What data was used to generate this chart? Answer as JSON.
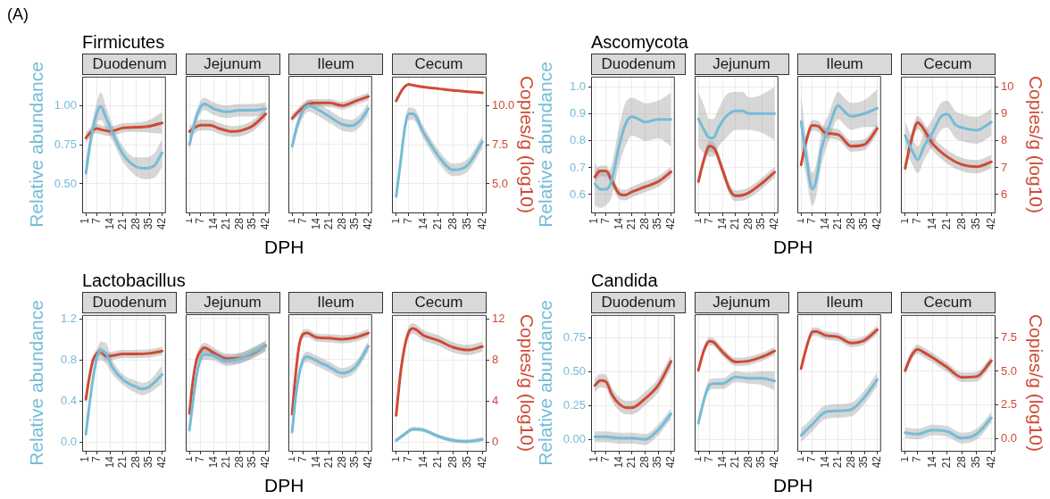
{
  "chart_data": [
    {
      "type": "line",
      "title": "Firmicutes",
      "subtitle": "Duodenum",
      "annotations": [
        "(A)"
      ],
      "ylabel": "Relative abundance",
      "xlim": [
        -1,
        44
      ],
      "xticks": [
        1,
        7,
        14,
        21,
        28,
        35,
        42
      ],
      "ylim": [
        0.31,
        1.19
      ],
      "yticks": [
        {
          "value": 0.5,
          "label": "0.50"
        },
        {
          "value": 0.75,
          "label": "0.75"
        },
        {
          "value": 1,
          "label": "1.00"
        }
      ],
      "y2lim": [
        3.1,
        11.9
      ],
      "grid": true,
      "series": [
        {
          "color": "#74bcd8",
          "x": [
            1,
            4,
            7,
            9,
            12,
            16,
            21,
            28,
            33,
            38,
            42
          ],
          "values": [
            0.57,
            0.81,
            0.96,
            1.0,
            0.92,
            0.81,
            0.69,
            0.61,
            0.6,
            0.62,
            0.7
          ],
          "lower": [
            0.49,
            0.75,
            0.89,
            0.91,
            0.85,
            0.76,
            0.64,
            0.55,
            0.53,
            0.54,
            0.61
          ],
          "upper": [
            0.65,
            0.87,
            1.03,
            1.09,
            0.99,
            0.86,
            0.74,
            0.67,
            0.67,
            0.7,
            0.79
          ]
        },
        {
          "color": "#cf4a35",
          "axis": "y2",
          "x": [
            1,
            4,
            7,
            9,
            14,
            21,
            28,
            35,
            42
          ],
          "values": [
            7.95,
            8.38,
            8.56,
            8.49,
            8.38,
            8.6,
            8.64,
            8.7,
            8.92
          ],
          "lower": [
            7.6,
            8.08,
            8.26,
            8.19,
            8.08,
            8.3,
            8.34,
            8.3,
            8.22
          ],
          "upper": [
            8.3,
            8.68,
            8.86,
            8.79,
            8.68,
            8.9,
            8.94,
            9.1,
            9.62
          ]
        }
      ]
    },
    {
      "type": "line",
      "subtitle": "Jejunum",
      "xlabel": "DPH",
      "xlim": [
        -1,
        44
      ],
      "xticks": [
        1,
        7,
        14,
        21,
        28,
        35,
        42
      ],
      "ylim": [
        0.31,
        1.19
      ],
      "yticks": [
        0.5,
        0.75,
        1
      ],
      "y2lim": [
        3.1,
        11.9
      ],
      "y2ticks": [
        5,
        7.5,
        10
      ],
      "grid": true,
      "tick_labels": "x",
      "series": [
        {
          "color": "#74bcd8",
          "x": [
            1,
            4,
            7,
            9,
            14,
            21,
            28,
            35,
            42
          ],
          "values": [
            0.75,
            0.9,
            0.99,
            1.01,
            0.98,
            0.96,
            0.97,
            0.97,
            0.98
          ],
          "lower": [
            0.71,
            0.86,
            0.95,
            0.97,
            0.94,
            0.92,
            0.93,
            0.93,
            0.94
          ],
          "upper": [
            0.79,
            0.94,
            1.03,
            1.05,
            1.02,
            1.0,
            1.01,
            1.01,
            1.02
          ]
        },
        {
          "color": "#cf4a35",
          "axis": "y2",
          "x": [
            1,
            4,
            7,
            12,
            17,
            24,
            28,
            35,
            42
          ],
          "values": [
            8.34,
            8.6,
            8.75,
            8.75,
            8.53,
            8.34,
            8.38,
            8.7,
            9.46
          ],
          "lower": [
            7.99,
            8.25,
            8.4,
            8.4,
            8.18,
            7.99,
            8.03,
            8.35,
            9.11
          ],
          "upper": [
            8.69,
            8.95,
            9.1,
            9.1,
            8.88,
            8.69,
            8.73,
            9.05,
            9.81
          ]
        }
      ]
    },
    {
      "type": "line",
      "subtitle": "Ileum",
      "xlim": [
        -1,
        44
      ],
      "xticks": [
        1,
        7,
        14,
        21,
        28,
        35,
        42
      ],
      "ylim": [
        0.31,
        1.19
      ],
      "yticks": [
        0.5,
        0.75,
        1
      ],
      "y2lim": [
        3.1,
        11.9
      ],
      "y2ticks": [
        5,
        7.5,
        10
      ],
      "grid": true,
      "tick_labels": "x",
      "series": [
        {
          "color": "#74bcd8",
          "x": [
            1,
            4,
            7,
            10,
            14,
            21,
            28,
            33,
            38,
            42
          ],
          "values": [
            0.74,
            0.88,
            0.97,
            1.0,
            0.98,
            0.93,
            0.88,
            0.87,
            0.91,
            0.98
          ],
          "lower": [
            0.7,
            0.84,
            0.93,
            0.96,
            0.94,
            0.89,
            0.84,
            0.83,
            0.87,
            0.94
          ],
          "upper": [
            0.78,
            0.92,
            1.01,
            1.04,
            1.02,
            0.97,
            0.92,
            0.91,
            0.95,
            1.02
          ]
        },
        {
          "color": "#cf4a35",
          "axis": "y2",
          "x": [
            1,
            4,
            7,
            10,
            14,
            21,
            28,
            35,
            42
          ],
          "values": [
            9.18,
            9.57,
            9.89,
            10.1,
            10.17,
            10.17,
            10.0,
            10.28,
            10.58
          ],
          "lower": [
            8.93,
            9.32,
            9.64,
            9.85,
            9.92,
            9.92,
            9.75,
            10.03,
            10.33
          ],
          "upper": [
            9.43,
            9.82,
            10.14,
            10.35,
            10.42,
            10.42,
            10.25,
            10.53,
            10.83
          ]
        }
      ]
    },
    {
      "type": "line",
      "subtitle": "Cecum",
      "y2label": "Copies/g (log10)",
      "xlim": [
        -1,
        44
      ],
      "xticks": [
        1,
        7,
        14,
        21,
        28,
        35,
        42
      ],
      "ylim": [
        0.31,
        1.19
      ],
      "y2lim": [
        3.1,
        11.9
      ],
      "y2ticks": [
        {
          "value": 5,
          "label": "5.0"
        },
        {
          "value": 7.5,
          "label": "7.5"
        },
        {
          "value": 10,
          "label": "10.0"
        }
      ],
      "grid": true,
      "series": [
        {
          "color": "#74bcd8",
          "x": [
            1,
            3,
            5,
            7,
            9,
            14,
            21,
            28,
            35,
            42
          ],
          "values": [
            0.42,
            0.63,
            0.85,
            0.95,
            0.95,
            0.83,
            0.68,
            0.59,
            0.62,
            0.77
          ],
          "lower": [
            0.38,
            0.59,
            0.81,
            0.91,
            0.91,
            0.79,
            0.64,
            0.55,
            0.58,
            0.73
          ],
          "upper": [
            0.46,
            0.67,
            0.89,
            0.99,
            0.99,
            0.87,
            0.72,
            0.63,
            0.66,
            0.81
          ]
        },
        {
          "color": "#cf4a35",
          "axis": "y2",
          "x": [
            1,
            4,
            7,
            9,
            14,
            21,
            28,
            35,
            42
          ],
          "values": [
            10.34,
            11.08,
            11.4,
            11.34,
            11.23,
            11.12,
            11.01,
            10.93,
            10.86
          ]
        }
      ]
    },
    {
      "type": "line",
      "title": "Ascomycota",
      "subtitle": "Duodenum",
      "ylabel": "Relative abundance",
      "xlim": [
        -1,
        44
      ],
      "xticks": [
        1,
        7,
        14,
        21,
        28,
        35,
        42
      ],
      "ylim": [
        0.53,
        1.04
      ],
      "yticks": [
        0.6,
        0.7,
        0.8,
        0.9,
        {
          "value": 1,
          "label": "1.0"
        }
      ],
      "y2lim": [
        5.3,
        10.4
      ],
      "grid": true,
      "series": [
        {
          "color": "#74bcd8",
          "x": [
            1,
            4,
            7,
            10,
            14,
            18,
            21,
            25,
            28,
            35,
            42
          ],
          "values": [
            0.64,
            0.62,
            0.62,
            0.65,
            0.78,
            0.87,
            0.89,
            0.88,
            0.87,
            0.88,
            0.88
          ],
          "lower": [
            0.56,
            0.55,
            0.56,
            0.59,
            0.71,
            0.79,
            0.82,
            0.81,
            0.8,
            0.81,
            0.78
          ],
          "upper": [
            0.72,
            0.69,
            0.68,
            0.71,
            0.85,
            0.95,
            0.96,
            0.95,
            0.94,
            0.95,
            0.98
          ]
        },
        {
          "color": "#cf4a35",
          "axis": "y2",
          "x": [
            1,
            4,
            7,
            10,
            14,
            17,
            21,
            28,
            35,
            42
          ],
          "values": [
            6.66,
            6.88,
            6.88,
            6.54,
            6.04,
            5.98,
            6.1,
            6.29,
            6.48,
            6.85
          ],
          "lower": [
            6.46,
            6.68,
            6.68,
            6.34,
            5.84,
            5.78,
            5.9,
            6.09,
            6.28,
            6.65
          ],
          "upper": [
            6.86,
            7.08,
            7.08,
            6.74,
            6.24,
            6.18,
            6.3,
            6.49,
            6.68,
            7.05
          ]
        }
      ]
    },
    {
      "type": "line",
      "subtitle": "Jejunum",
      "xlabel": "DPH",
      "xlim": [
        -1,
        44
      ],
      "xticks": [
        1,
        7,
        14,
        21,
        28,
        35,
        42
      ],
      "ylim": [
        0.53,
        1.04
      ],
      "yticks": [
        0.6,
        0.7,
        0.8,
        0.9,
        1
      ],
      "y2lim": [
        5.3,
        10.4
      ],
      "y2ticks": [
        6,
        7,
        8,
        9,
        10
      ],
      "grid": true,
      "tick_labels": "x",
      "series": [
        {
          "color": "#74bcd8",
          "x": [
            1,
            4,
            7,
            9,
            12,
            16,
            21,
            25,
            28,
            35,
            42
          ],
          "values": [
            0.88,
            0.84,
            0.81,
            0.81,
            0.85,
            0.89,
            0.91,
            0.91,
            0.9,
            0.9,
            0.9
          ],
          "lower": [
            0.78,
            0.75,
            0.74,
            0.74,
            0.78,
            0.81,
            0.84,
            0.84,
            0.84,
            0.83,
            0.8
          ],
          "upper": [
            0.98,
            0.93,
            0.88,
            0.88,
            0.92,
            0.97,
            0.98,
            0.98,
            0.96,
            0.97,
            1.0
          ]
        },
        {
          "color": "#cf4a35",
          "axis": "y2",
          "x": [
            1,
            4,
            7,
            10,
            14,
            18,
            21,
            25,
            28,
            35,
            42
          ],
          "values": [
            6.48,
            7.29,
            7.79,
            7.66,
            6.91,
            6.16,
            5.95,
            5.98,
            6.06,
            6.41,
            6.83
          ],
          "lower": [
            6.28,
            7.09,
            7.59,
            7.46,
            6.71,
            5.96,
            5.75,
            5.78,
            5.86,
            6.21,
            6.63
          ],
          "upper": [
            6.68,
            7.49,
            7.99,
            7.86,
            7.11,
            6.36,
            6.15,
            6.18,
            6.26,
            6.61,
            7.03
          ]
        }
      ]
    },
    {
      "type": "line",
      "subtitle": "Ileum",
      "xlim": [
        -1,
        44
      ],
      "xticks": [
        1,
        7,
        14,
        21,
        28,
        35,
        42
      ],
      "ylim": [
        0.53,
        1.04
      ],
      "yticks": [
        0.6,
        0.7,
        0.8,
        0.9,
        1
      ],
      "y2lim": [
        5.3,
        10.4
      ],
      "y2ticks": [
        6,
        7,
        8,
        9,
        10
      ],
      "grid": true,
      "tick_labels": "x",
      "series": [
        {
          "color": "#74bcd8",
          "x": [
            1,
            4,
            7,
            9,
            12,
            16,
            21,
            24,
            28,
            35,
            42
          ],
          "values": [
            0.87,
            0.73,
            0.62,
            0.65,
            0.77,
            0.85,
            0.93,
            0.91,
            0.89,
            0.9,
            0.92
          ],
          "lower": [
            0.77,
            0.66,
            0.56,
            0.59,
            0.71,
            0.8,
            0.88,
            0.86,
            0.84,
            0.85,
            0.85
          ],
          "upper": [
            0.97,
            0.8,
            0.68,
            0.71,
            0.83,
            0.9,
            0.98,
            0.96,
            0.94,
            0.95,
            0.99
          ]
        },
        {
          "color": "#cf4a35",
          "axis": "y2",
          "x": [
            1,
            4,
            7,
            10,
            14,
            21,
            28,
            35,
            42
          ],
          "values": [
            7.1,
            8.04,
            8.56,
            8.54,
            8.29,
            8.22,
            7.79,
            7.85,
            8.45
          ],
          "lower": [
            6.9,
            7.84,
            8.36,
            8.34,
            8.09,
            8.02,
            7.59,
            7.65,
            8.25
          ],
          "upper": [
            7.3,
            8.24,
            8.76,
            8.74,
            8.49,
            8.42,
            7.99,
            8.05,
            8.65
          ]
        }
      ]
    },
    {
      "type": "line",
      "subtitle": "Cecum",
      "y2label": "Copies/g (log10)",
      "xlim": [
        -1,
        44
      ],
      "xticks": [
        1,
        7,
        14,
        21,
        28,
        35,
        42
      ],
      "ylim": [
        0.53,
        1.04
      ],
      "y2lim": [
        5.3,
        10.4
      ],
      "y2ticks": [
        6,
        7,
        8,
        9,
        10
      ],
      "grid": true,
      "series": [
        {
          "color": "#74bcd8",
          "x": [
            1,
            4,
            7,
            10,
            14,
            18,
            21,
            25,
            28,
            35,
            42
          ],
          "values": [
            0.82,
            0.77,
            0.73,
            0.78,
            0.83,
            0.89,
            0.9,
            0.86,
            0.85,
            0.84,
            0.87
          ],
          "lower": [
            0.77,
            0.72,
            0.68,
            0.73,
            0.78,
            0.84,
            0.85,
            0.81,
            0.8,
            0.79,
            0.82
          ],
          "upper": [
            0.87,
            0.82,
            0.78,
            0.83,
            0.88,
            0.94,
            0.95,
            0.91,
            0.9,
            0.89,
            0.92
          ]
        },
        {
          "color": "#cf4a35",
          "axis": "y2",
          "x": [
            1,
            4,
            7,
            9,
            14,
            21,
            28,
            35,
            42
          ],
          "values": [
            6.98,
            8.04,
            8.69,
            8.54,
            7.91,
            7.41,
            7.12,
            7.04,
            7.22
          ],
          "lower": [
            6.73,
            7.79,
            8.44,
            8.29,
            7.66,
            7.16,
            6.87,
            6.79,
            6.97
          ],
          "upper": [
            7.23,
            8.29,
            8.94,
            8.79,
            8.16,
            7.66,
            7.37,
            7.29,
            7.47
          ]
        }
      ]
    },
    {
      "type": "line",
      "title": "Lactobacillus",
      "subtitle": "Duodenum",
      "ylabel": "Relative abundance",
      "xlim": [
        -1,
        44
      ],
      "xticks": [
        1,
        7,
        14,
        21,
        28,
        35,
        42
      ],
      "ylim": [
        -0.09,
        1.24
      ],
      "yticks": [
        {
          "value": 0,
          "label": "0.0"
        },
        0.4,
        0.8,
        1.2
      ],
      "y2lim": [
        -0.9,
        12.4
      ],
      "grid": true,
      "series": [
        {
          "color": "#74bcd8",
          "x": [
            1,
            3,
            5,
            7,
            9,
            12,
            15,
            21,
            28,
            31,
            35,
            42
          ],
          "values": [
            0.08,
            0.38,
            0.64,
            0.83,
            0.89,
            0.86,
            0.74,
            0.61,
            0.54,
            0.52,
            0.54,
            0.66
          ],
          "lower": [
            0.05,
            0.34,
            0.59,
            0.77,
            0.8,
            0.76,
            0.67,
            0.56,
            0.48,
            0.46,
            0.48,
            0.57
          ],
          "upper": [
            0.11,
            0.42,
            0.69,
            0.89,
            0.98,
            0.96,
            0.81,
            0.66,
            0.6,
            0.58,
            0.6,
            0.75
          ]
        },
        {
          "color": "#cf4a35",
          "axis": "y2",
          "x": [
            1,
            3,
            5,
            7,
            9,
            12,
            15,
            21,
            28,
            35,
            42
          ],
          "values": [
            4.2,
            6.45,
            8.1,
            8.66,
            8.83,
            8.36,
            8.43,
            8.6,
            8.6,
            8.66,
            8.89
          ],
          "lower": [
            3.8,
            6.05,
            7.7,
            8.26,
            8.43,
            7.96,
            8.03,
            8.2,
            8.2,
            8.26,
            8.49
          ],
          "upper": [
            4.6,
            6.85,
            8.5,
            9.06,
            9.23,
            8.76,
            8.83,
            9.0,
            9.0,
            9.06,
            9.29
          ]
        }
      ]
    },
    {
      "type": "line",
      "subtitle": "Jejunum",
      "xlabel": "DPH",
      "xlim": [
        -1,
        44
      ],
      "xticks": [
        1,
        7,
        14,
        21,
        28,
        35,
        42
      ],
      "ylim": [
        -0.09,
        1.24
      ],
      "yticks": [
        0,
        0.4,
        0.8,
        1.2
      ],
      "y2lim": [
        -0.9,
        12.4
      ],
      "y2ticks": [
        0,
        4,
        8,
        12
      ],
      "grid": true,
      "tick_labels": "x",
      "series": [
        {
          "color": "#74bcd8",
          "x": [
            1,
            3,
            5,
            7,
            9,
            14,
            21,
            28,
            35,
            42
          ],
          "values": [
            0.12,
            0.41,
            0.66,
            0.81,
            0.85,
            0.84,
            0.79,
            0.81,
            0.87,
            0.93
          ],
          "lower": [
            0.07,
            0.36,
            0.61,
            0.76,
            0.8,
            0.79,
            0.74,
            0.76,
            0.82,
            0.88
          ],
          "upper": [
            0.17,
            0.46,
            0.71,
            0.86,
            0.9,
            0.89,
            0.84,
            0.86,
            0.92,
            0.98
          ]
        },
        {
          "color": "#cf4a35",
          "axis": "y2",
          "x": [
            1,
            3,
            5,
            7,
            9,
            14,
            21,
            28,
            35,
            42
          ],
          "values": [
            2.81,
            6.12,
            8.1,
            8.83,
            9.16,
            8.66,
            8.1,
            8.17,
            8.6,
            9.36
          ],
          "lower": [
            2.31,
            5.62,
            7.6,
            8.33,
            8.66,
            8.16,
            7.6,
            7.67,
            8.1,
            8.86
          ],
          "upper": [
            3.31,
            6.62,
            8.6,
            9.33,
            9.66,
            9.16,
            8.6,
            8.67,
            9.1,
            9.86
          ]
        }
      ]
    },
    {
      "type": "line",
      "subtitle": "Ileum",
      "xlim": [
        -1,
        44
      ],
      "xticks": [
        1,
        7,
        14,
        21,
        28,
        35,
        42
      ],
      "ylim": [
        -0.09,
        1.24
      ],
      "yticks": [
        0,
        0.4,
        0.8,
        1.2
      ],
      "y2lim": [
        -0.9,
        12.4
      ],
      "y2ticks": [
        0,
        4,
        8,
        12
      ],
      "grid": true,
      "tick_labels": "x",
      "series": [
        {
          "color": "#74bcd8",
          "x": [
            1,
            3,
            5,
            7,
            9,
            14,
            21,
            28,
            35,
            42
          ],
          "values": [
            0.1,
            0.45,
            0.68,
            0.8,
            0.83,
            0.79,
            0.73,
            0.67,
            0.73,
            0.93
          ],
          "lower": [
            0.05,
            0.4,
            0.63,
            0.75,
            0.78,
            0.74,
            0.68,
            0.62,
            0.68,
            0.88
          ],
          "upper": [
            0.15,
            0.5,
            0.73,
            0.85,
            0.88,
            0.84,
            0.78,
            0.72,
            0.78,
            0.98
          ]
        },
        {
          "color": "#cf4a35",
          "axis": "y2",
          "x": [
            1,
            3,
            5,
            7,
            9,
            14,
            21,
            28,
            35,
            42
          ],
          "values": [
            2.74,
            6.78,
            9.59,
            10.48,
            10.58,
            10.15,
            10.08,
            9.98,
            10.15,
            10.58
          ],
          "lower": [
            2.34,
            6.38,
            9.19,
            10.08,
            10.18,
            9.75,
            9.68,
            9.58,
            9.75,
            10.18
          ],
          "upper": [
            3.14,
            7.18,
            9.99,
            10.88,
            10.98,
            10.55,
            10.48,
            10.38,
            10.55,
            10.98
          ]
        }
      ]
    },
    {
      "type": "line",
      "subtitle": "Cecum",
      "y2label": "Copies/g (log10)",
      "xlim": [
        -1,
        44
      ],
      "xticks": [
        1,
        7,
        14,
        21,
        28,
        35,
        42
      ],
      "ylim": [
        -0.09,
        1.24
      ],
      "y2lim": [
        -0.9,
        12.4
      ],
      "y2ticks": [
        0,
        4,
        8,
        12
      ],
      "grid": true,
      "series": [
        {
          "color": "#74bcd8",
          "x": [
            1,
            5,
            9,
            14,
            21,
            28,
            35,
            42
          ],
          "values": [
            0.02,
            0.08,
            0.13,
            0.12,
            0.06,
            0.02,
            0.01,
            0.03
          ],
          "lower": [
            0.0,
            0.06,
            0.11,
            0.1,
            0.04,
            0.0,
            -0.01,
            0.01
          ],
          "upper": [
            0.04,
            0.1,
            0.15,
            0.14,
            0.08,
            0.04,
            0.03,
            0.05
          ]
        },
        {
          "color": "#cf4a35",
          "axis": "y2",
          "x": [
            1,
            3,
            5,
            7,
            9,
            14,
            21,
            28,
            35,
            42
          ],
          "values": [
            2.64,
            6.61,
            9.26,
            10.74,
            11.07,
            10.41,
            9.92,
            9.26,
            8.99,
            9.32
          ],
          "lower": [
            2.14,
            6.11,
            8.76,
            10.24,
            10.57,
            9.91,
            9.42,
            8.76,
            8.49,
            8.82
          ],
          "upper": [
            3.14,
            7.11,
            9.76,
            11.24,
            11.57,
            10.91,
            10.42,
            9.76,
            9.49,
            9.82
          ]
        }
      ]
    },
    {
      "type": "line",
      "title": "Candida",
      "subtitle": "Duodenum",
      "ylabel": "Relative abundance",
      "xlim": [
        -1,
        44
      ],
      "xticks": [
        1,
        7,
        14,
        21,
        28,
        35,
        42
      ],
      "ylim": [
        -0.09,
        0.92
      ],
      "yticks": [
        {
          "value": 0,
          "label": "0.00"
        },
        {
          "value": 0.25,
          "label": "0.25"
        },
        {
          "value": 0.5,
          "label": "0.50"
        },
        {
          "value": 0.75,
          "label": "0.75"
        }
      ],
      "y2lim": [
        -0.93,
        9.16
      ],
      "grid": true,
      "series": [
        {
          "color": "#74bcd8",
          "x": [
            1,
            7,
            14,
            21,
            28,
            35,
            42
          ],
          "values": [
            0.02,
            0.02,
            0.01,
            0.01,
            0.0,
            0.07,
            0.19
          ],
          "lower": [
            -0.02,
            -0.02,
            -0.03,
            -0.03,
            -0.04,
            0.03,
            0.15
          ],
          "upper": [
            0.06,
            0.06,
            0.05,
            0.05,
            0.04,
            0.11,
            0.23
          ]
        },
        {
          "color": "#cf4a35",
          "axis": "y2",
          "x": [
            1,
            4,
            7,
            10,
            14,
            18,
            21,
            28,
            35,
            42
          ],
          "values": [
            3.95,
            4.32,
            4.24,
            3.34,
            2.61,
            2.32,
            2.32,
            2.98,
            3.95,
            5.73
          ],
          "lower": [
            3.45,
            3.82,
            3.74,
            2.84,
            2.11,
            1.82,
            1.82,
            2.48,
            3.45,
            5.23
          ],
          "upper": [
            4.45,
            4.82,
            4.74,
            3.84,
            3.11,
            2.82,
            2.82,
            3.48,
            4.45,
            6.23
          ]
        }
      ]
    },
    {
      "type": "line",
      "subtitle": "Jejunum",
      "xlabel": "DPH",
      "xlim": [
        -1,
        44
      ],
      "xticks": [
        1,
        7,
        14,
        21,
        28,
        35,
        42
      ],
      "ylim": [
        -0.09,
        0.92
      ],
      "yticks": [
        0,
        0.25,
        0.5,
        0.75
      ],
      "y2lim": [
        -0.93,
        9.16
      ],
      "y2ticks": [
        0,
        2.5,
        5,
        7.5
      ],
      "grid": true,
      "tick_labels": "x",
      "series": [
        {
          "color": "#74bcd8",
          "x": [
            1,
            4,
            7,
            10,
            14,
            21,
            28,
            35,
            42
          ],
          "values": [
            0.12,
            0.29,
            0.4,
            0.41,
            0.41,
            0.46,
            0.45,
            0.45,
            0.43
          ],
          "lower": [
            0.08,
            0.25,
            0.36,
            0.37,
            0.37,
            0.42,
            0.41,
            0.4,
            0.36
          ],
          "upper": [
            0.16,
            0.33,
            0.44,
            0.45,
            0.45,
            0.5,
            0.49,
            0.5,
            0.5
          ]
        },
        {
          "color": "#cf4a35",
          "axis": "y2",
          "x": [
            1,
            4,
            7,
            9,
            14,
            21,
            28,
            35,
            42
          ],
          "values": [
            5.05,
            6.51,
            7.17,
            7.12,
            6.39,
            5.66,
            5.73,
            6.02,
            6.46
          ],
          "lower": [
            4.75,
            6.21,
            6.87,
            6.82,
            6.09,
            5.36,
            5.43,
            5.72,
            6.16
          ],
          "upper": [
            5.35,
            6.81,
            7.47,
            7.42,
            6.69,
            5.96,
            6.03,
            6.32,
            6.76
          ]
        }
      ]
    },
    {
      "type": "line",
      "subtitle": "Ileum",
      "xlim": [
        -1,
        44
      ],
      "xticks": [
        1,
        7,
        14,
        21,
        28,
        35,
        42
      ],
      "ylim": [
        -0.09,
        0.92
      ],
      "yticks": [
        0,
        0.25,
        0.5,
        0.75
      ],
      "y2lim": [
        -0.93,
        9.16
      ],
      "y2ticks": [
        0,
        2.5,
        5,
        7.5
      ],
      "grid": true,
      "tick_labels": "x",
      "series": [
        {
          "color": "#74bcd8",
          "x": [
            1,
            7,
            14,
            21,
            28,
            35,
            42
          ],
          "values": [
            0.03,
            0.11,
            0.2,
            0.21,
            0.22,
            0.31,
            0.44
          ],
          "lower": [
            -0.02,
            0.06,
            0.15,
            0.16,
            0.17,
            0.26,
            0.39
          ],
          "upper": [
            0.08,
            0.16,
            0.25,
            0.26,
            0.27,
            0.36,
            0.49
          ]
        },
        {
          "color": "#cf4a35",
          "axis": "y2",
          "x": [
            1,
            4,
            7,
            9,
            14,
            21,
            28,
            35,
            42
          ],
          "values": [
            5.17,
            6.76,
            7.85,
            7.9,
            7.61,
            7.49,
            7.05,
            7.24,
            8.02
          ],
          "lower": [
            4.87,
            6.46,
            7.55,
            7.6,
            7.31,
            7.19,
            6.75,
            6.94,
            7.72
          ],
          "upper": [
            5.47,
            7.06,
            8.15,
            8.2,
            7.91,
            7.79,
            7.35,
            7.54,
            8.32
          ]
        }
      ]
    },
    {
      "type": "line",
      "subtitle": "Cecum",
      "y2label": "Copies/g (log10)",
      "xlim": [
        -1,
        44
      ],
      "xticks": [
        1,
        7,
        14,
        21,
        28,
        35,
        42
      ],
      "ylim": [
        -0.09,
        0.92
      ],
      "y2lim": [
        -0.93,
        9.16
      ],
      "y2ticks": [
        {
          "value": 0,
          "label": "0.0"
        },
        2.5,
        {
          "value": 5,
          "label": "5.0"
        },
        7.5
      ],
      "grid": true,
      "series": [
        {
          "color": "#74bcd8",
          "x": [
            1,
            7,
            14,
            21,
            28,
            35,
            42
          ],
          "values": [
            0.05,
            0.04,
            0.07,
            0.06,
            0.01,
            0.04,
            0.16
          ],
          "lower": [
            0.01,
            0.0,
            0.03,
            0.02,
            -0.03,
            0.0,
            0.12
          ],
          "upper": [
            0.09,
            0.08,
            0.11,
            0.1,
            0.05,
            0.08,
            0.2
          ]
        },
        {
          "color": "#cf4a35",
          "axis": "y2",
          "x": [
            1,
            4,
            7,
            10,
            14,
            21,
            28,
            35,
            42
          ],
          "values": [
            5.05,
            6.15,
            6.63,
            6.39,
            6.02,
            5.29,
            4.56,
            4.61,
            5.78
          ],
          "lower": [
            4.7,
            5.8,
            6.28,
            6.04,
            5.67,
            4.94,
            4.21,
            4.26,
            5.43
          ],
          "upper": [
            5.4,
            6.5,
            6.98,
            6.74,
            6.37,
            5.64,
            4.91,
            4.96,
            6.13
          ]
        }
      ]
    }
  ]
}
